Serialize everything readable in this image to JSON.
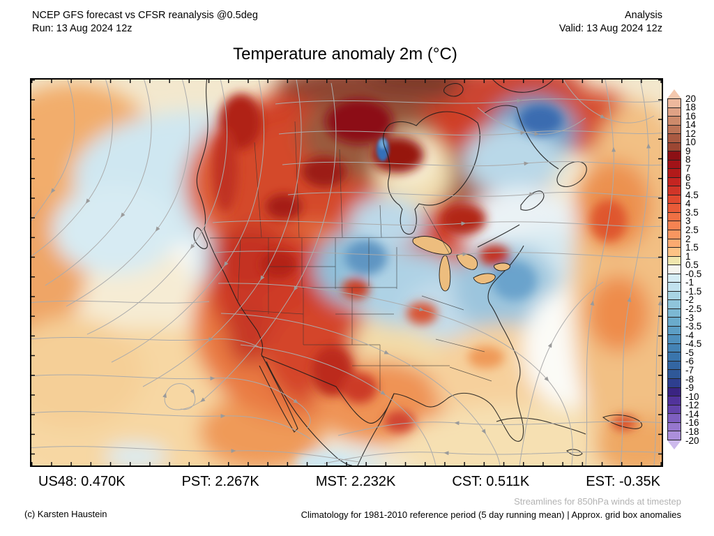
{
  "header": {
    "model_line": "NCEP GFS forecast vs CFSR reanalysis @0.5deg",
    "run_line": "Run: 13 Aug 2024 12z",
    "mode": "Analysis",
    "valid_line": "Valid: 13 Aug 2024 12z"
  },
  "title": "Temperature anomaly 2m (°C)",
  "stats": [
    "US48: 0.470K",
    "PST: 2.267K",
    "MST: 2.232K",
    "CST: 0.511K",
    "EST: -0.35K"
  ],
  "footer": {
    "copyright": "(c) Karsten Haustein",
    "streamline_note": "Streamlines for 850hPa winds at timestep",
    "climatology_note": "Climatology for 1981-2010 reference period (5 day running mean) | Approx. grid box anomalies"
  },
  "colorbar": {
    "unit": "°C",
    "tick_labels": [
      "20",
      "18",
      "16",
      "14",
      "12",
      "10",
      "9",
      "8",
      "7",
      "6",
      "5",
      "4.5",
      "4",
      "3.5",
      "3",
      "2.5",
      "2",
      "1.5",
      "1",
      "0.5",
      "-0.5",
      "-1",
      "-1.5",
      "-2",
      "-2.5",
      "-3",
      "-3.5",
      "-4",
      "-4.5",
      "-5",
      "-6",
      "-7",
      "-8",
      "-9",
      "-10",
      "-12",
      "-14",
      "-16",
      "-18",
      "-20"
    ],
    "segment_colors": [
      "#edb89d",
      "#dfa285",
      "#cd8a6b",
      "#bd7457",
      "#aa5a42",
      "#9c4733",
      "#8c1015",
      "#a21318",
      "#b21a1a",
      "#c42521",
      "#d03528",
      "#e0492f",
      "#e85b38",
      "#ef7044",
      "#f58352",
      "#f89660",
      "#fbaa70",
      "#fdc285",
      "#f0e6ae",
      "#f4f4ee",
      "#d5ecf4",
      "#c2e2ee",
      "#a8d4e4",
      "#8fc5da",
      "#7cb8d3",
      "#6aabcc",
      "#5c9ec5",
      "#4f90bd",
      "#4483b5",
      "#3a75ac",
      "#3366a2",
      "#2f5898",
      "#2e3f8f",
      "#3a2482",
      "#51339b",
      "#6344ab",
      "#7e5fc0",
      "#9677cd",
      "#ab8fdb"
    ],
    "arrow_top_color": "#f4c8ae",
    "arrow_bottom_color": "#cdbaec"
  },
  "map": {
    "streamline_color": "#ababab"
  }
}
